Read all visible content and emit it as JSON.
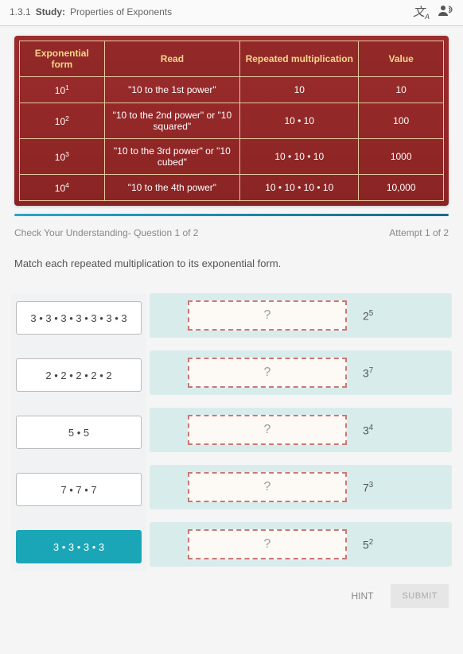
{
  "header": {
    "breadcrumb_prefix": "1.3.1",
    "study_label": "Study:",
    "title": "Properties of Exponents",
    "translate_icon": "⅀",
    "translate_sub": "A",
    "avatar_icon": "👤"
  },
  "table": {
    "headers": {
      "exp": "Exponential form",
      "read": "Read",
      "mult": "Repeated multiplication",
      "val": "Value"
    },
    "rows": [
      {
        "base": "10",
        "pow": "1",
        "read": "\"10 to the 1st power\"",
        "mult": "10",
        "val": "10"
      },
      {
        "base": "10",
        "pow": "2",
        "read": "\"10 to the 2nd power\" or \"10 squared\"",
        "mult": "10 • 10",
        "val": "100"
      },
      {
        "base": "10",
        "pow": "3",
        "read": "\"10 to the 3rd power\" or \"10 cubed\"",
        "mult": "10 • 10 • 10",
        "val": "1000"
      },
      {
        "base": "10",
        "pow": "4",
        "read": "\"10 to the 4th power\"",
        "mult": "10 • 10 • 10 • 10",
        "val": "10,000"
      }
    ]
  },
  "check": {
    "left": "Check Your Understanding- Question 1 of 2",
    "right": "Attempt 1 of 2"
  },
  "prompt": "Match each repeated multiplication to its exponential form.",
  "sources": [
    "3 • 3 • 3 • 3 • 3 • 3 • 3",
    "2 • 2 • 2 • 2 • 2",
    "5 • 5",
    "7 • 7 • 7",
    "3 • 3 • 3 • 3"
  ],
  "drop_placeholder": "?",
  "targets": [
    {
      "base": "2",
      "pow": "5"
    },
    {
      "base": "3",
      "pow": "7"
    },
    {
      "base": "3",
      "pow": "4"
    },
    {
      "base": "7",
      "pow": "3"
    },
    {
      "base": "5",
      "pow": "2"
    }
  ],
  "footer": {
    "hint": "HINT",
    "submit": "SUBMIT"
  },
  "colors": {
    "table_bg": "#8f2a2a",
    "table_border": "#e6c9a0",
    "th_text": "#f5d78a",
    "divider_a": "#2aa6c9",
    "divider_b": "#156a8a",
    "selected": "#1aa6b7",
    "target_bg": "#d9ecec",
    "drop_border": "#c77"
  }
}
